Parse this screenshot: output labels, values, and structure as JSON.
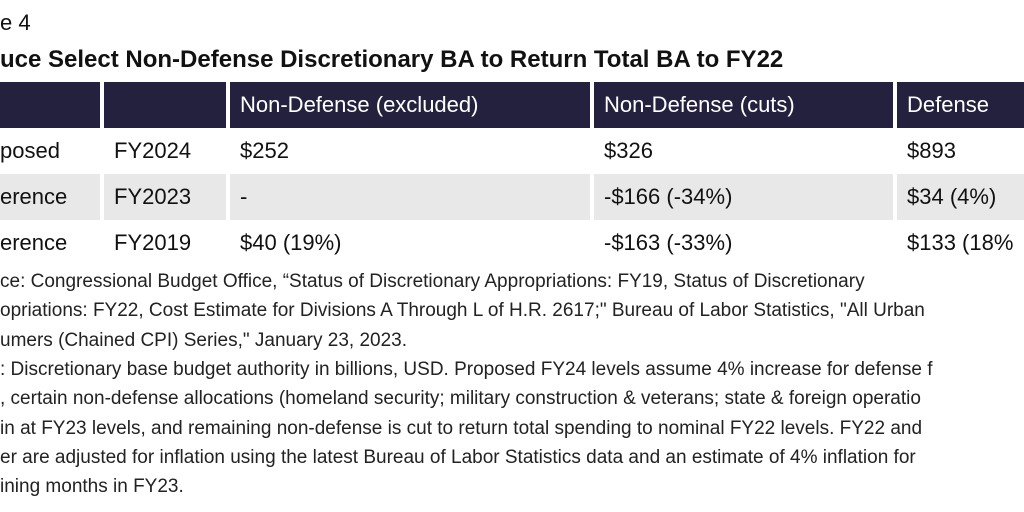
{
  "header": {
    "label": "e 4",
    "title": "uce Select Non-Defense Discretionary BA to Return Total BA to FY22"
  },
  "table": {
    "columns": [
      "",
      "",
      "Non-Defense (excluded)",
      "Non-Defense (cuts)",
      "Defense"
    ],
    "rows": [
      [
        "posed",
        "FY2024",
        "$252",
        "$326",
        "$893"
      ],
      [
        "erence",
        "FY2023",
        "-",
        "-$166 (-34%)",
        "$34 (4%)"
      ],
      [
        "erence",
        "FY2019",
        "$40 (19%)",
        "-$163 (-33%)",
        "$133 (18%"
      ]
    ]
  },
  "notes": [
    "ce: Congressional Budget Office, “Status of Discretionary Appropriations: FY19, Status of Discretionary",
    "opriations: FY22, Cost Estimate for Divisions A Through L of H.R. 2617;\" Bureau of Labor Statistics, \"All Urban",
    "umers (Chained CPI) Series,\" January 23, 2023.",
    ": Discretionary base budget authority in billions, USD. Proposed FY24 levels assume 4% increase for defense f",
    ", certain non-defense allocations (homeland security; military construction & veterans; state & foreign operatio",
    "in at FY23 levels, and remaining non-defense is cut to return total spending to nominal FY22 levels. FY22 and",
    "er are adjusted for inflation using the latest Bureau of Labor Statistics data and an estimate of 4% inflation for",
    "ining months in FY23."
  ]
}
